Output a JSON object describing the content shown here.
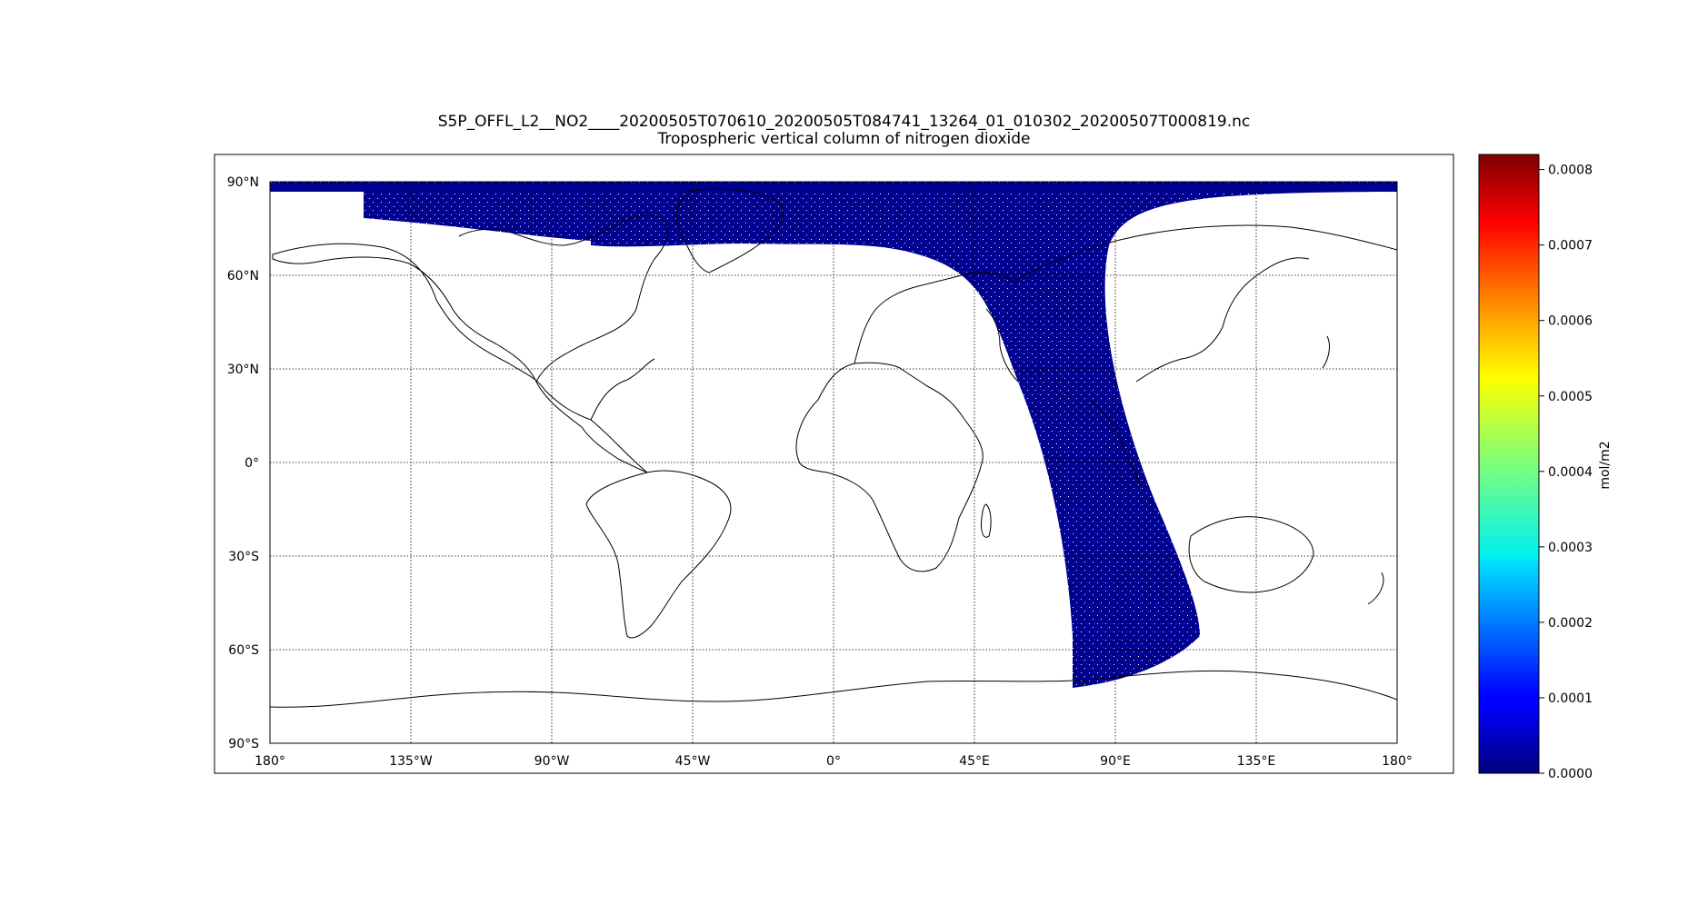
{
  "title": "S5P_OFFL_L2__NO2____20200505T070610_20200505T084741_13264_01_010302_20200507T000819.nc",
  "subtitle": "Tropospheric vertical column of nitrogen dioxide",
  "map": {
    "projection": "equirectangular",
    "lon_range": [
      -180,
      180
    ],
    "lat_range": [
      -90,
      90
    ],
    "graticule": "dotted",
    "lat_tick_labels": [
      "90°N",
      "60°N",
      "30°N",
      "0°",
      "30°S",
      "60°S",
      "90°S"
    ],
    "lon_tick_labels": [
      "180°",
      "135°W",
      "90°W",
      "45°W",
      "0°",
      "45°E",
      "90°E",
      "135°E",
      "180°"
    ],
    "swath_color": "#00008f",
    "coastline_color": "#000000"
  },
  "colorbar": {
    "label": "mol/m2",
    "colormap": "jet",
    "range": [
      0.0,
      0.00082
    ],
    "tick_labels": [
      "0.0008",
      "0.0007",
      "0.0006",
      "0.0005",
      "0.0004",
      "0.0003",
      "0.0002",
      "0.0001",
      "0.0000"
    ],
    "tick_values": [
      0.0008,
      0.0007,
      0.0006,
      0.0005,
      0.0004,
      0.0003,
      0.0002,
      0.0001,
      0.0
    ]
  }
}
